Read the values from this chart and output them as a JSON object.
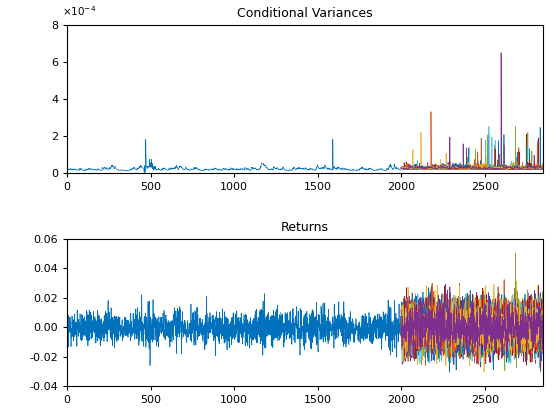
{
  "title1": "Conditional Variances",
  "title2": "Returns",
  "xlim": [
    0,
    2850
  ],
  "ylim1": [
    0,
    0.0008
  ],
  "ylim2": [
    -0.04,
    0.06
  ],
  "yticks1": [
    0,
    0.0002,
    0.0004,
    0.0006,
    0.0008
  ],
  "ytick_labels1": [
    "0",
    "2",
    "4",
    "6",
    "8"
  ],
  "yticks2": [
    -0.04,
    -0.02,
    0,
    0.02,
    0.04,
    0.06
  ],
  "xticks": [
    0,
    500,
    1000,
    1500,
    2000,
    2500
  ],
  "n_points_single": 2000,
  "n_points_multi": 850,
  "n_series": 25,
  "bg_color": "#ffffff",
  "colors": [
    "#0072BD",
    "#D95319",
    "#EDB120",
    "#7E2F8E",
    "#77AC30",
    "#4DBEEE",
    "#A2142F",
    "#0072BD",
    "#D95319",
    "#EDB120",
    "#7E2F8E",
    "#77AC30",
    "#4DBEEE",
    "#A2142F",
    "#0072BD",
    "#D95319",
    "#EDB120",
    "#7E2F8E",
    "#77AC30",
    "#4DBEEE",
    "#A2142F",
    "#0072BD",
    "#D95319",
    "#EDB120",
    "#7E2F8E"
  ],
  "seed": 42
}
